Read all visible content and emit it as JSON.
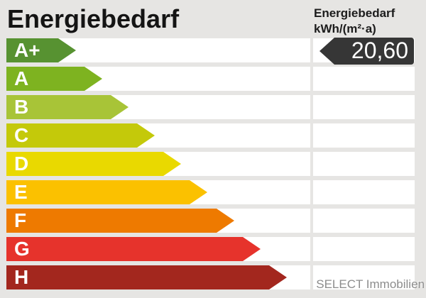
{
  "title": "Energiebedarf",
  "unit_header": {
    "line1": "Energiebedarf",
    "line2": "kWh/(m²·a)"
  },
  "value": {
    "display": "20,60",
    "class": "A+"
  },
  "watermark": "SELECT Immobilien",
  "colors": {
    "background": "#e6e5e3",
    "row_background": "#ffffff",
    "value_arrow": "#363636",
    "value_text": "#ffffff",
    "title_text": "#141414",
    "watermark_text": "#8c8c8c"
  },
  "scale": {
    "classes": [
      {
        "label": "A+",
        "color": "#579231",
        "arrow_width": 98
      },
      {
        "label": "A",
        "color": "#7eb320",
        "arrow_width": 135
      },
      {
        "label": "B",
        "color": "#a8c437",
        "arrow_width": 172
      },
      {
        "label": "C",
        "color": "#c4c90a",
        "arrow_width": 209
      },
      {
        "label": "D",
        "color": "#e9d900",
        "arrow_width": 246
      },
      {
        "label": "E",
        "color": "#fbc100",
        "arrow_width": 283
      },
      {
        "label": "F",
        "color": "#ee7a00",
        "arrow_width": 321
      },
      {
        "label": "G",
        "color": "#e6332c",
        "arrow_width": 358
      },
      {
        "label": "H",
        "color": "#a3271e",
        "arrow_width": 395
      }
    ]
  },
  "chart_data": {
    "type": "bar",
    "orientation": "horizontal",
    "title": "Energiebedarf",
    "unit": "kWh/(m²·a)",
    "categories": [
      "A+",
      "A",
      "B",
      "C",
      "D",
      "E",
      "F",
      "G",
      "H"
    ],
    "series": [
      {
        "name": "energy-class-arrow-length-px",
        "values": [
          98,
          135,
          172,
          209,
          246,
          283,
          321,
          358,
          395
        ]
      }
    ],
    "marked_value": 20.6,
    "marked_value_display": "20,60",
    "marked_class": "A+",
    "legend": "none",
    "grid": false
  }
}
